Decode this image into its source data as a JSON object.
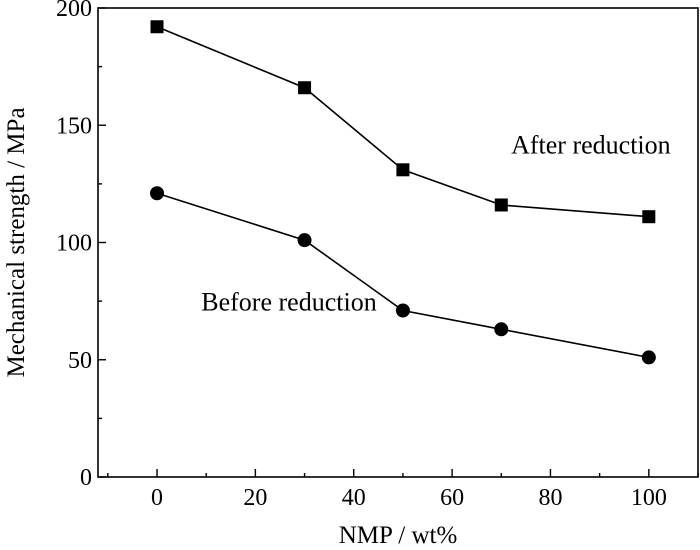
{
  "chart_data": {
    "type": "line",
    "title": "",
    "xlabel": "NMP / wt%",
    "ylabel": "Mechanical strength / MPa",
    "xlim": [
      -12,
      110
    ],
    "ylim": [
      0,
      200
    ],
    "x_ticks": [
      0,
      20,
      40,
      60,
      80,
      100
    ],
    "y_ticks": [
      0,
      50,
      100,
      150,
      200
    ],
    "x": [
      0,
      30,
      50,
      70,
      100
    ],
    "series": [
      {
        "name": "After reduction",
        "marker": "square",
        "values": [
          192,
          166,
          131,
          116,
          111
        ]
      },
      {
        "name": "Before reduction",
        "marker": "circle",
        "values": [
          121,
          101,
          71,
          63,
          51
        ]
      }
    ],
    "annotations": [
      {
        "text": "After reduction",
        "x": 72,
        "y": 138
      },
      {
        "text": "Before reduction",
        "x": 9,
        "y": 71
      }
    ],
    "grid": false,
    "legend": "none"
  }
}
